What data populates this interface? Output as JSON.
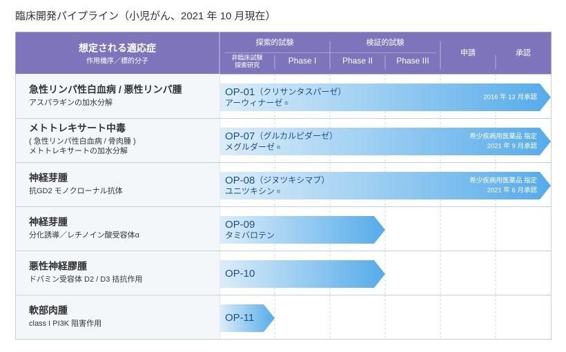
{
  "title": "臨床開発パイプライン（小児がん、2021 年 10 月現在）",
  "header": {
    "indication": "想定される適応症",
    "mechanism": "作用機序／標的分子",
    "groups": [
      "探索的試験",
      "検証的試験"
    ],
    "columns": [
      [
        "非臨床試験",
        "探索研究"
      ],
      [
        "Phase I"
      ],
      [
        "Phase II"
      ],
      [
        "Phase III"
      ],
      [
        "申請"
      ],
      [
        "承認"
      ]
    ]
  },
  "rows": [
    {
      "name": "急性リンパ性白血病 / 悪性リンパ腫",
      "details": [
        "アスパラギンの加水分解"
      ],
      "code": "OP-01",
      "generic": "（クリサンタスパーゼ）",
      "brand": "アーウィナーゼ",
      "mark": "®",
      "notes": [
        "2016 年 12 月承認"
      ],
      "stage": "承認"
    },
    {
      "name": "メトトレキサート中毒",
      "details": [
        "( 急性リンパ性白血病 / 骨肉腫 )",
        "メトトレキサートの加水分解"
      ],
      "code": "OP-07",
      "generic": "（グルカルピダーゼ）",
      "brand": "メグルダーゼ",
      "mark": "®",
      "notes": [
        "希少疾病用医薬品 指定",
        "2021 年 9 月承認"
      ],
      "stage": "承認"
    },
    {
      "name": "神経芽腫",
      "details": [
        "抗GD2 モノクローナル抗体"
      ],
      "code": "OP-08",
      "generic": "（ジヌツキシマブ）",
      "brand": "ユニツキシン",
      "mark": "®",
      "notes": [
        "希少疾病用医薬品 指定",
        "2021 年 6 月承認"
      ],
      "stage": "承認"
    },
    {
      "name": "神経芽腫",
      "details": [
        "分化誘導／レチノイン酸受容体α"
      ],
      "code": "OP-09",
      "brand": "タミバロテン",
      "stage": "Phase II"
    },
    {
      "name": "悪性神経膠腫",
      "details": [
        "ドパミン受容体 D2 / D3 拮抗作用"
      ],
      "code": "OP-10",
      "stage": "Phase II"
    },
    {
      "name": "軟部肉腫",
      "details": [
        "class I PI3K 阻害作用"
      ],
      "code": "OP-11",
      "stage": "非臨床試験"
    }
  ]
}
